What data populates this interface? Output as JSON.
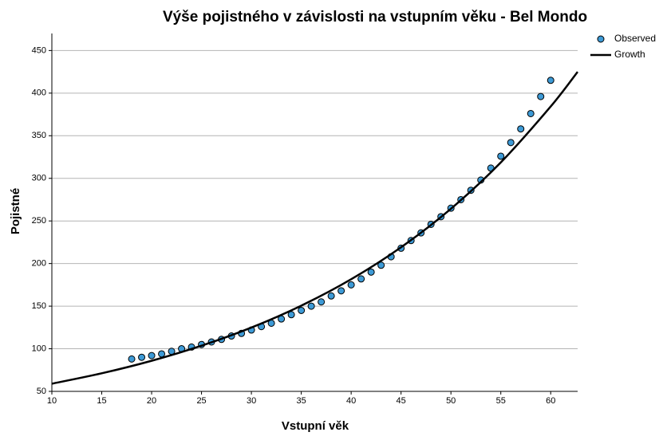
{
  "chart_data": {
    "type": "scatter",
    "title": "Výše pojistného v závislosti na vstupním věku - Bel Mondo",
    "x_label": "Vstupní věk",
    "y_label": "Pojistné",
    "xlim": [
      10,
      62.7
    ],
    "ylim": [
      50,
      470
    ],
    "xticks": [
      10,
      15,
      20,
      25,
      30,
      35,
      40,
      45,
      50,
      55,
      60
    ],
    "yticks": [
      50,
      100,
      150,
      200,
      250,
      300,
      350,
      400,
      450
    ],
    "grid": true,
    "legend": "top-right",
    "series": [
      {
        "name": "Observed",
        "type": "scatter",
        "color": "#3d9ad6",
        "x": [
          18,
          19,
          20,
          21,
          22,
          23,
          24,
          25,
          26,
          27,
          28,
          29,
          30,
          31,
          32,
          33,
          34,
          35,
          36,
          37,
          38,
          39,
          40,
          41,
          42,
          43,
          44,
          45,
          46,
          47,
          48,
          49,
          50,
          51,
          52,
          53,
          54,
          55,
          56,
          57,
          58,
          59,
          60
        ],
        "values": [
          88,
          90,
          92,
          94,
          97,
          100,
          102,
          105,
          108,
          111,
          115,
          118,
          122,
          126,
          130,
          135,
          140,
          145,
          150,
          155,
          162,
          168,
          175,
          182,
          190,
          198,
          208,
          218,
          227,
          236,
          246,
          255,
          265,
          275,
          286,
          298,
          312,
          326,
          342,
          358,
          376,
          396,
          415
        ]
      },
      {
        "name": "Growth",
        "type": "line",
        "color": "#000000",
        "x": [
          10,
          15,
          20,
          25,
          30,
          35,
          40,
          45,
          50,
          55,
          60,
          62.7
        ],
        "values": [
          59.0,
          71.2,
          85.9,
          103.6,
          124.9,
          150.6,
          181.6,
          219.1,
          264.3,
          318.7,
          384.3,
          425.0
        ]
      }
    ]
  }
}
